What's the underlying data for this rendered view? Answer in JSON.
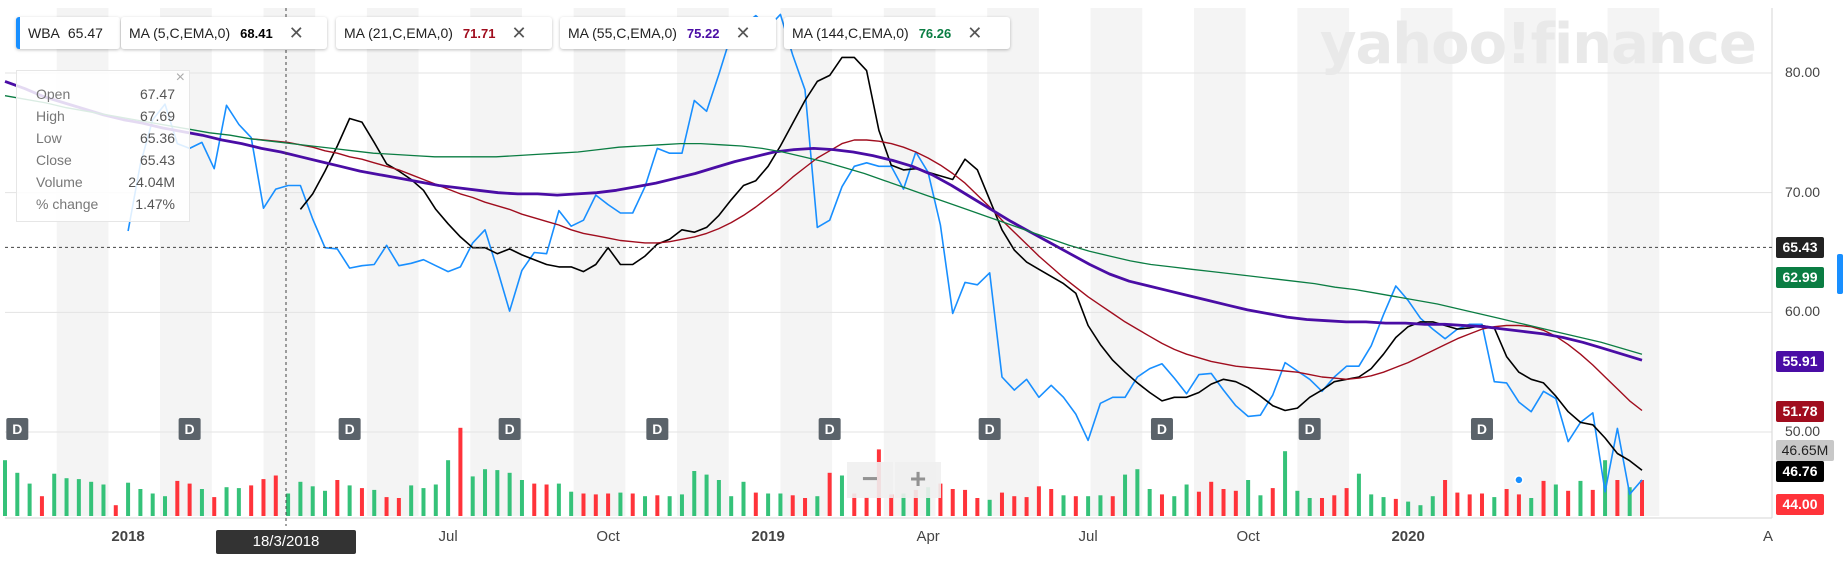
{
  "watermark": "yahoo!finance",
  "legend": {
    "ticker": {
      "label": "WBA",
      "value": "65.47",
      "color": "#188fff"
    },
    "studies": [
      {
        "label": "MA (5,C,EMA,0)",
        "value": "68.41",
        "color": "#000000"
      },
      {
        "label": "MA (21,C,EMA,0)",
        "value": "71.71",
        "color": "#a00d1e"
      },
      {
        "label": "MA (55,C,EMA,0)",
        "value": "75.22",
        "color": "#4a0da5"
      },
      {
        "label": "MA (144,C,EMA,0)",
        "value": "76.26",
        "color": "#0b7d43"
      }
    ],
    "close_glyph": "✕"
  },
  "ohlc": {
    "rows": [
      {
        "k": "Open",
        "v": "67.47"
      },
      {
        "k": "High",
        "v": "67.69"
      },
      {
        "k": "Low",
        "v": "65.36"
      },
      {
        "k": "Close",
        "v": "65.43"
      },
      {
        "k": "Volume",
        "v": "24.04M"
      },
      {
        "k": "% change",
        "v": "1.47%"
      }
    ],
    "close_glyph": "×"
  },
  "cursor_date": "18/3/2018",
  "zoom": {
    "minus": "−",
    "plus": "+"
  },
  "price_tags": [
    {
      "text": "65.43",
      "price": 65.43,
      "color": "#222222"
    },
    {
      "text": "62.99",
      "price": 62.99,
      "color": "#0b7d43"
    },
    {
      "text": "55.91",
      "price": 55.91,
      "color": "#4a0da5"
    },
    {
      "text": "51.78",
      "price": 51.78,
      "color": "#a00d1e"
    },
    {
      "text": "46.65M",
      "price": 48.5,
      "color": "#c8c8c8"
    },
    {
      "text": "46.76",
      "price": 46.76,
      "color": "#000000"
    },
    {
      "text": "44.00",
      "price": 44.0,
      "color": "#ff333a"
    }
  ],
  "chart_data": {
    "type": "line",
    "title": "",
    "ylim": [
      44,
      84
    ],
    "yticks": [
      "80.00",
      "70.00",
      "60.00",
      "50.00"
    ],
    "ytick_values": [
      80,
      70,
      60,
      50
    ],
    "xticks": [
      "2018",
      "Jul",
      "Oct",
      "2019",
      "Apr",
      "Jul",
      "Oct",
      "2020",
      "A"
    ],
    "xtick_index": [
      10,
      36,
      49,
      62,
      75,
      88,
      101,
      114,
      127
    ],
    "grid": true,
    "dividend_marker": "D",
    "dividend_index": [
      1,
      15,
      28,
      41,
      53,
      67,
      80,
      94,
      106,
      120
    ],
    "series": [
      {
        "name": "WBA",
        "color": "#188fff",
        "values": [
          66.8,
          72.4,
          76.1,
          77.4,
          74.1,
          73.7,
          74.2,
          72.0,
          77.3,
          75.7,
          74.6,
          68.7,
          70.3,
          70.6,
          70.6,
          67.8,
          65.4,
          65.3,
          63.7,
          63.9,
          64.0,
          65.6,
          63.9,
          64.1,
          64.4,
          63.9,
          63.4,
          63.8,
          65.8,
          66.9,
          63.6,
          60.1,
          63.5,
          65.0,
          64.9,
          68.5,
          67.2,
          67.7,
          69.8,
          69.0,
          68.3,
          68.3,
          70.5,
          73.7,
          73.3,
          73.3,
          77.7,
          76.8,
          79.9,
          83.2,
          84.0,
          84.8,
          83.8,
          84.9,
          81.5,
          78.6,
          67.1,
          67.7,
          70.5,
          72.2,
          72.5,
          72.2,
          72.2,
          70.3,
          73.4,
          71.7,
          67.3,
          59.9,
          62.5,
          62.3,
          63.3,
          54.6,
          53.5,
          54.4,
          52.9,
          53.9,
          52.9,
          51.5,
          49.3,
          52.4,
          52.9,
          52.9,
          54.6,
          55.3,
          55.7,
          54.5,
          53.2,
          54.8,
          54.9,
          53.5,
          52.2,
          51.3,
          51.4,
          53.1,
          55.8,
          55.1,
          54.4,
          53.4,
          54.6,
          55.5,
          55.5,
          57.2,
          59.8,
          62.2,
          61.0,
          59.5,
          58.6,
          57.8,
          58.6,
          59.0,
          59.0,
          54.2,
          54.1,
          52.5,
          51.7,
          53.4,
          52.8,
          49.2,
          50.8,
          51.6,
          45.0,
          50.3,
          44.8,
          46.0
        ]
      },
      {
        "name": "MA (5,C,EMA,0)",
        "color": "#000000",
        "values": [
          68.6,
          69.9,
          71.8,
          73.9,
          76.2,
          75.9,
          74.2,
          72.4,
          71.8,
          71.1,
          70.2,
          68.6,
          67.4,
          66.3,
          65.4,
          65.4,
          64.9,
          65.3,
          64.8,
          64.4,
          64.0,
          63.8,
          63.8,
          63.4,
          64.0,
          65.4,
          64.0,
          64.0,
          64.7,
          65.7,
          66.1,
          66.9,
          66.7,
          67.1,
          68.1,
          69.4,
          70.6,
          71.0,
          72.2,
          73.9,
          75.8,
          77.7,
          79.3,
          79.8,
          81.3,
          81.3,
          80.2,
          75.2,
          72.3,
          71.9,
          72.0,
          71.7,
          71.4,
          71.1,
          72.8,
          71.9,
          69.4,
          66.9,
          65.2,
          64.2,
          63.6,
          63.0,
          62.4,
          61.6,
          58.9,
          57.3,
          56.0,
          55.0,
          54.1,
          53.3,
          52.6,
          52.9,
          52.9,
          53.3,
          54.0,
          54.4,
          54.2,
          53.7,
          53.0,
          52.2,
          51.8,
          52.0,
          52.9,
          53.5,
          54.2,
          54.4,
          54.6,
          55.3,
          56.5,
          57.9,
          58.8,
          59.2,
          59.2,
          58.9,
          58.6,
          58.7,
          58.9,
          58.7,
          56.3,
          55.0,
          54.4,
          54.1,
          53.0,
          51.7,
          50.8,
          50.6,
          49.5,
          48.2,
          47.6,
          46.8
        ]
      },
      {
        "name": "MA (21,C,EMA,0)",
        "color": "#a00d1e",
        "values": [
          74.5,
          74.4,
          74.3,
          74.2,
          74.0,
          73.8,
          73.5,
          73.3,
          73.0,
          72.8,
          72.5,
          72.2,
          71.9,
          71.5,
          71.1,
          70.7,
          70.3,
          69.9,
          69.6,
          69.2,
          68.9,
          68.6,
          68.2,
          67.9,
          67.6,
          67.3,
          66.9,
          66.6,
          66.4,
          66.2,
          66.0,
          65.9,
          65.8,
          65.8,
          65.9,
          66.1,
          66.3,
          66.6,
          67.0,
          67.5,
          68.1,
          68.8,
          69.6,
          70.4,
          71.3,
          72.1,
          72.9,
          73.5,
          74.1,
          74.4,
          74.4,
          74.3,
          74.1,
          73.8,
          73.4,
          72.9,
          72.3,
          71.6,
          70.8,
          69.8,
          68.8,
          67.7,
          66.7,
          65.7,
          64.7,
          63.8,
          62.9,
          62.1,
          61.3,
          60.6,
          59.9,
          59.2,
          58.6,
          58.0,
          57.4,
          56.9,
          56.5,
          56.2,
          55.9,
          55.7,
          55.5,
          55.4,
          55.3,
          55.2,
          55.1,
          55.0,
          54.8,
          54.6,
          54.5,
          54.4,
          54.5,
          54.7,
          55.0,
          55.4,
          55.8,
          56.3,
          56.8,
          57.3,
          57.8,
          58.2,
          58.6,
          58.8,
          58.9,
          58.9,
          58.8,
          58.5,
          58.0,
          57.3,
          56.5,
          55.6,
          54.6,
          53.6,
          52.6,
          51.8
        ]
      },
      {
        "name": "MA (55,C,EMA,0)",
        "color": "#4a0da5",
        "values": [
          79.3,
          78.7,
          78.0,
          77.5,
          77.0,
          76.5,
          76.1,
          75.8,
          75.4,
          75.1,
          74.8,
          74.4,
          74.1,
          73.7,
          73.4,
          73.0,
          72.6,
          72.2,
          71.8,
          71.5,
          71.2,
          70.9,
          70.6,
          70.4,
          70.2,
          70.0,
          69.9,
          69.9,
          69.8,
          69.9,
          70.0,
          70.2,
          70.5,
          70.8,
          71.2,
          71.6,
          72.1,
          72.6,
          73.0,
          73.4,
          73.6,
          73.7,
          73.6,
          73.4,
          73.1,
          72.7,
          72.2,
          71.5,
          70.6,
          69.6,
          68.6,
          67.6,
          66.7,
          65.8,
          64.9,
          64.0,
          63.2,
          62.6,
          62.2,
          61.8,
          61.4,
          61.0,
          60.6,
          60.2,
          59.9,
          59.6,
          59.4,
          59.3,
          59.2,
          59.2,
          59.1,
          59.1,
          59.0,
          59.0,
          58.9,
          58.8,
          58.6,
          58.4,
          58.2,
          57.9,
          57.5,
          57.0,
          56.5,
          56.0
        ]
      },
      {
        "name": "MA (144,C,EMA,0)",
        "color": "#0b7d43",
        "values": [
          78.1,
          77.8,
          77.5,
          77.1,
          76.8,
          76.5,
          76.2,
          75.9,
          75.6,
          75.3,
          75.0,
          74.8,
          74.5,
          74.3,
          74.1,
          73.9,
          73.7,
          73.5,
          73.3,
          73.2,
          73.1,
          73.0,
          73.0,
          73.0,
          73.0,
          73.1,
          73.2,
          73.3,
          73.4,
          73.6,
          73.8,
          73.9,
          74.0,
          74.1,
          74.1,
          74.0,
          73.9,
          73.7,
          73.4,
          73.0,
          72.6,
          72.1,
          71.6,
          71.0,
          70.4,
          69.8,
          69.2,
          68.6,
          68.0,
          67.4,
          66.8,
          66.2,
          65.6,
          65.1,
          64.7,
          64.3,
          64.0,
          63.8,
          63.6,
          63.4,
          63.2,
          63.0,
          62.8,
          62.6,
          62.4,
          62.1,
          61.9,
          61.6,
          61.3,
          61.0,
          60.7,
          60.3,
          59.9,
          59.5,
          59.1,
          58.7,
          58.3,
          57.9,
          57.5,
          57.0,
          56.5
        ]
      }
    ],
    "volume": {
      "unit": "M",
      "ylim": [
        0,
        100
      ],
      "values": [
        62,
        48,
        36,
        22,
        47,
        42,
        41,
        38,
        35,
        12,
        37,
        30,
        25,
        22,
        39,
        36,
        30,
        21,
        32,
        31,
        34,
        41,
        45,
        25,
        38,
        33,
        28,
        40,
        34,
        31,
        29,
        21,
        20,
        34,
        31,
        35,
        62,
        98,
        44,
        52,
        51,
        48,
        40,
        36,
        35,
        36,
        27,
        25,
        24,
        25,
        26,
        25,
        22,
        23,
        22,
        24,
        50,
        46,
        40,
        22,
        38,
        26,
        25,
        25,
        23,
        20,
        22,
        48,
        45,
        25,
        21,
        74,
        24,
        25,
        29,
        32,
        36,
        30,
        29,
        20,
        18,
        26,
        22,
        21,
        33,
        30,
        23,
        22,
        22,
        23,
        22,
        46,
        52,
        30,
        24,
        22,
        35,
        27,
        38,
        30,
        28,
        40,
        23,
        31,
        72,
        28,
        20,
        20,
        23,
        31,
        47,
        24,
        21,
        19,
        16,
        12,
        22,
        40,
        26,
        24,
        25,
        21,
        30,
        24,
        20,
        39,
        35,
        28,
        39,
        29,
        62,
        40,
        32,
        40
      ],
      "up_color": "#35c279",
      "down_color": "#ff333a"
    },
    "volume_bars": [
      {
        "v": 62,
        "up": 1
      },
      {
        "v": 48,
        "up": 1
      },
      {
        "v": 36,
        "up": 1
      },
      {
        "v": 22,
        "up": 0
      },
      {
        "v": 47,
        "up": 1
      },
      {
        "v": 42,
        "up": 1
      },
      {
        "v": 41,
        "up": 1
      },
      {
        "v": 38,
        "up": 1
      },
      {
        "v": 35,
        "up": 1
      },
      {
        "v": 12,
        "up": 0
      },
      {
        "v": 37,
        "up": 1
      },
      {
        "v": 30,
        "up": 1
      },
      {
        "v": 25,
        "up": 1
      },
      {
        "v": 22,
        "up": 1
      },
      {
        "v": 39,
        "up": 0
      },
      {
        "v": 36,
        "up": 0
      },
      {
        "v": 30,
        "up": 1
      },
      {
        "v": 21,
        "up": 0
      },
      {
        "v": 32,
        "up": 1
      },
      {
        "v": 31,
        "up": 1
      },
      {
        "v": 34,
        "up": 0
      },
      {
        "v": 41,
        "up": 0
      },
      {
        "v": 45,
        "up": 0
      },
      {
        "v": 25,
        "up": 1
      },
      {
        "v": 38,
        "up": 1
      },
      {
        "v": 33,
        "up": 1
      },
      {
        "v": 28,
        "up": 1
      },
      {
        "v": 40,
        "up": 0
      },
      {
        "v": 34,
        "up": 1
      },
      {
        "v": 31,
        "up": 0
      },
      {
        "v": 29,
        "up": 1
      },
      {
        "v": 21,
        "up": 0
      },
      {
        "v": 20,
        "up": 0
      },
      {
        "v": 34,
        "up": 1
      },
      {
        "v": 31,
        "up": 1
      },
      {
        "v": 35,
        "up": 1
      },
      {
        "v": 62,
        "up": 1
      },
      {
        "v": 98,
        "up": 0
      },
      {
        "v": 44,
        "up": 1
      },
      {
        "v": 52,
        "up": 1
      },
      {
        "v": 51,
        "up": 1
      },
      {
        "v": 48,
        "up": 1
      },
      {
        "v": 40,
        "up": 1
      },
      {
        "v": 36,
        "up": 0
      },
      {
        "v": 35,
        "up": 0
      },
      {
        "v": 36,
        "up": 1
      },
      {
        "v": 27,
        "up": 1
      },
      {
        "v": 25,
        "up": 0
      },
      {
        "v": 24,
        "up": 0
      },
      {
        "v": 25,
        "up": 0
      },
      {
        "v": 26,
        "up": 1
      },
      {
        "v": 25,
        "up": 0
      },
      {
        "v": 22,
        "up": 1
      },
      {
        "v": 23,
        "up": 0
      },
      {
        "v": 22,
        "up": 1
      },
      {
        "v": 24,
        "up": 1
      },
      {
        "v": 50,
        "up": 1
      },
      {
        "v": 46,
        "up": 1
      },
      {
        "v": 40,
        "up": 1
      },
      {
        "v": 22,
        "up": 1
      },
      {
        "v": 38,
        "up": 1
      },
      {
        "v": 26,
        "up": 0
      },
      {
        "v": 25,
        "up": 1
      },
      {
        "v": 25,
        "up": 1
      },
      {
        "v": 23,
        "up": 0
      },
      {
        "v": 20,
        "up": 0
      },
      {
        "v": 22,
        "up": 1
      },
      {
        "v": 48,
        "up": 0
      },
      {
        "v": 45,
        "up": 1
      },
      {
        "v": 25,
        "up": 0
      },
      {
        "v": 21,
        "up": 0
      },
      {
        "v": 74,
        "up": 0
      },
      {
        "v": 24,
        "up": 0
      },
      {
        "v": 25,
        "up": 1
      },
      {
        "v": 29,
        "up": 0
      },
      {
        "v": 32,
        "up": 1
      },
      {
        "v": 36,
        "up": 0
      },
      {
        "v": 30,
        "up": 0
      },
      {
        "v": 29,
        "up": 0
      },
      {
        "v": 20,
        "up": 0
      },
      {
        "v": 18,
        "up": 1
      },
      {
        "v": 26,
        "up": 0
      },
      {
        "v": 22,
        "up": 0
      },
      {
        "v": 21,
        "up": 0
      },
      {
        "v": 33,
        "up": 0
      },
      {
        "v": 30,
        "up": 0
      },
      {
        "v": 23,
        "up": 1
      },
      {
        "v": 22,
        "up": 0
      },
      {
        "v": 22,
        "up": 1
      },
      {
        "v": 23,
        "up": 1
      },
      {
        "v": 22,
        "up": 0
      },
      {
        "v": 46,
        "up": 1
      },
      {
        "v": 52,
        "up": 1
      },
      {
        "v": 30,
        "up": 1
      },
      {
        "v": 24,
        "up": 0
      },
      {
        "v": 22,
        "up": 1
      },
      {
        "v": 35,
        "up": 1
      },
      {
        "v": 27,
        "up": 0
      },
      {
        "v": 38,
        "up": 0
      },
      {
        "v": 30,
        "up": 0
      },
      {
        "v": 28,
        "up": 0
      },
      {
        "v": 40,
        "up": 1
      },
      {
        "v": 23,
        "up": 1
      },
      {
        "v": 31,
        "up": 0
      },
      {
        "v": 72,
        "up": 1
      },
      {
        "v": 28,
        "up": 1
      },
      {
        "v": 20,
        "up": 1
      },
      {
        "v": 20,
        "up": 0
      },
      {
        "v": 23,
        "up": 0
      },
      {
        "v": 31,
        "up": 0
      },
      {
        "v": 47,
        "up": 1
      },
      {
        "v": 24,
        "up": 1
      },
      {
        "v": 21,
        "up": 1
      },
      {
        "v": 19,
        "up": 0
      },
      {
        "v": 16,
        "up": 1
      },
      {
        "v": 12,
        "up": 1
      },
      {
        "v": 22,
        "up": 1
      },
      {
        "v": 40,
        "up": 0
      },
      {
        "v": 26,
        "up": 0
      },
      {
        "v": 24,
        "up": 0
      },
      {
        "v": 25,
        "up": 0
      },
      {
        "v": 21,
        "up": 1
      },
      {
        "v": 30,
        "up": 0
      },
      {
        "v": 24,
        "up": 0
      },
      {
        "v": 20,
        "up": 1
      },
      {
        "v": 39,
        "up": 0
      },
      {
        "v": 35,
        "up": 1
      },
      {
        "v": 28,
        "up": 0
      },
      {
        "v": 39,
        "up": 1
      },
      {
        "v": 29,
        "up": 0
      },
      {
        "v": 62,
        "up": 1
      },
      {
        "v": 40,
        "up": 0
      },
      {
        "v": 32,
        "up": 1
      },
      {
        "v": 40,
        "up": 0
      }
    ]
  }
}
